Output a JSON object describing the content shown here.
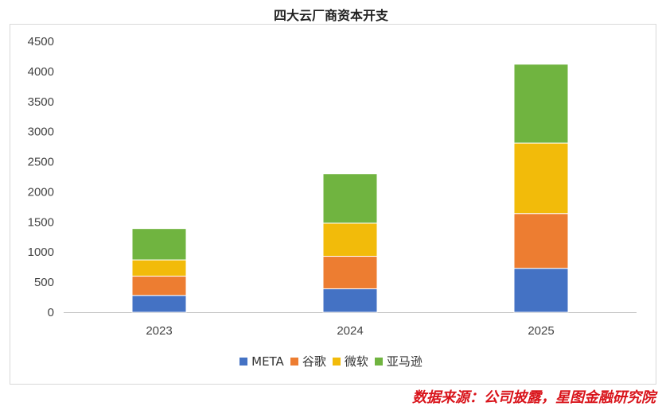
{
  "chart_data": {
    "type": "bar",
    "stacked": true,
    "title": "四大云厂商资本开支",
    "categories": [
      "2023",
      "2024",
      "2025"
    ],
    "series": [
      {
        "name": "META",
        "color": "#4472c4",
        "values": [
          280,
          390,
          730
        ]
      },
      {
        "name": "谷歌",
        "color": "#ed7d31",
        "values": [
          320,
          540,
          910
        ]
      },
      {
        "name": "微软",
        "color": "#f2bb0a",
        "values": [
          270,
          550,
          1170
        ]
      },
      {
        "name": "亚马逊",
        "color": "#70b440",
        "values": [
          520,
          820,
          1310
        ]
      }
    ],
    "ylim": [
      0,
      4500
    ],
    "yticks": [
      "0",
      "500",
      "1000",
      "1500",
      "2000",
      "2500",
      "3000",
      "3500",
      "4000",
      "4500"
    ],
    "grid": false,
    "legend": "bottom"
  },
  "source": "数据来源：公司披露，星图金融研究院"
}
